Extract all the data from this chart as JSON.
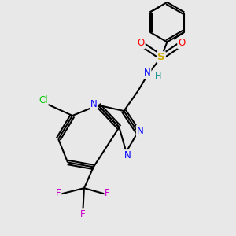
{
  "background_color": "#e8e8e8",
  "bond_color": "#000000",
  "atom_colors": {
    "N": "#0000ff",
    "O": "#ff0000",
    "S": "#ccaa00",
    "Cl": "#00cc00",
    "F": "#cc00cc",
    "H": "#008888",
    "C": "#000000"
  },
  "figsize": [
    3.0,
    3.0
  ],
  "dpi": 100,
  "xlim": [
    0,
    10
  ],
  "ylim": [
    0,
    10
  ]
}
